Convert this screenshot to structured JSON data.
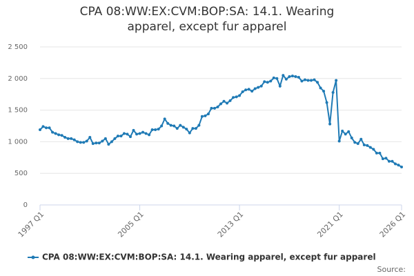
{
  "chart_data": {
    "type": "line",
    "title": "CPA 08:WW:EX:CVM:BOP:SA: 14.1. Wearing apparel, except fur apparel",
    "source": "Source:",
    "categories": [
      "1997 Q1",
      null,
      null,
      null,
      null,
      null,
      null,
      null,
      null,
      null,
      null,
      null,
      null,
      null,
      null,
      null,
      null,
      null,
      null,
      null,
      null,
      null,
      null,
      null,
      null,
      null,
      null,
      null,
      null,
      null,
      null,
      null,
      "2005 Q1",
      null,
      null,
      null,
      null,
      null,
      null,
      null,
      null,
      null,
      null,
      null,
      null,
      null,
      null,
      null,
      null,
      null,
      null,
      null,
      null,
      null,
      null,
      null,
      null,
      null,
      null,
      null,
      null,
      null,
      null,
      null,
      "2013 Q1",
      null,
      null,
      null,
      null,
      null,
      null,
      null,
      null,
      null,
      null,
      null,
      null,
      null,
      null,
      null,
      null,
      null,
      null,
      null,
      null,
      null,
      null,
      null,
      null,
      null,
      null,
      null,
      null,
      null,
      null,
      null,
      "2021 Q1",
      null,
      null,
      null,
      null,
      null,
      null,
      null,
      null,
      null,
      null,
      null,
      null,
      null,
      null,
      null,
      null,
      null,
      null,
      null,
      "2026 Q1"
    ],
    "series": [
      {
        "name": "CPA 08:WW:EX:CVM:BOP:SA: 14.1. Wearing apparel, except fur apparel",
        "color": "#1f7ab5",
        "values": [
          1190,
          1240,
          1220,
          1220,
          1150,
          1130,
          1110,
          1100,
          1070,
          1050,
          1050,
          1030,
          1000,
          990,
          990,
          1010,
          1070,
          970,
          980,
          980,
          1010,
          1050,
          960,
          1000,
          1050,
          1090,
          1090,
          1130,
          1120,
          1080,
          1180,
          1120,
          1130,
          1150,
          1130,
          1110,
          1190,
          1190,
          1200,
          1250,
          1360,
          1290,
          1260,
          1250,
          1210,
          1260,
          1230,
          1200,
          1140,
          1210,
          1210,
          1260,
          1400,
          1410,
          1440,
          1530,
          1530,
          1550,
          1600,
          1640,
          1610,
          1650,
          1700,
          1710,
          1730,
          1790,
          1820,
          1830,
          1800,
          1840,
          1860,
          1880,
          1950,
          1940,
          1960,
          2010,
          2000,
          1880,
          2050,
          1990,
          2030,
          2040,
          2030,
          2020,
          1960,
          1980,
          1970,
          1970,
          1980,
          1940,
          1850,
          1800,
          1620,
          1280,
          1780,
          1970,
          1010,
          1170,
          1120,
          1160,
          1060,
          990,
          970,
          1040,
          950,
          940,
          910,
          880,
          820,
          820,
          730,
          740,
          690,
          690,
          650,
          630,
          600
        ]
      }
    ],
    "ylim": [
      0,
      2500
    ],
    "yticks": [
      0,
      500,
      {
        "value": 1000,
        "label": "1 000"
      },
      {
        "value": 1500,
        "label": "1 500"
      },
      {
        "value": 2000,
        "label": "2 000"
      },
      {
        "value": 2500,
        "label": "2 500"
      }
    ],
    "grid": true,
    "legend": "bottom"
  }
}
